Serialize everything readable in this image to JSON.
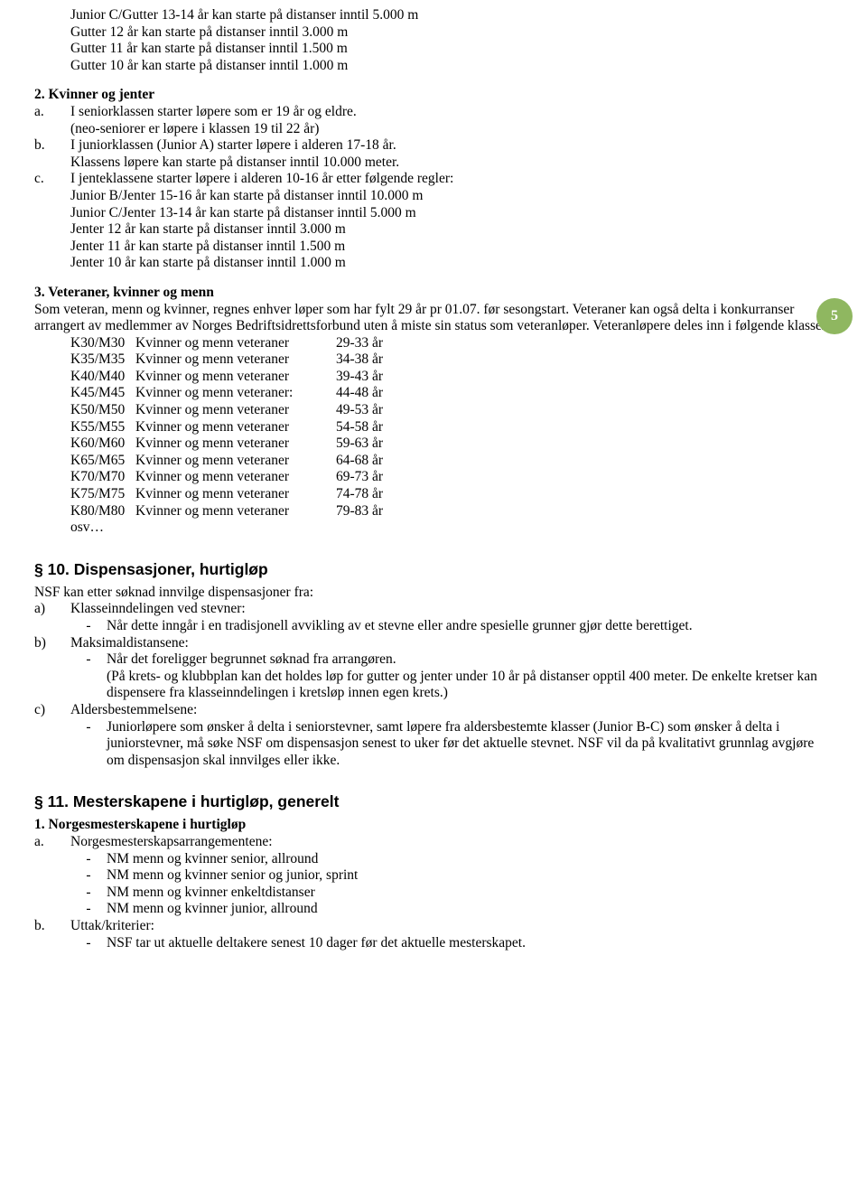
{
  "page_badge": "5",
  "top_lines": [
    "Junior C/Gutter 13-14 år kan starte på distanser inntil 5.000 m",
    "Gutter 12 år kan starte på distanser inntil 3.000 m",
    "Gutter 11 år kan starte på distanser inntil 1.500 m",
    "Gutter 10 år kan starte på distanser inntil 1.000 m"
  ],
  "s2": {
    "title": "2. Kvinner og jenter",
    "a": {
      "label": "a.",
      "lines": [
        "I seniorklassen starter løpere som er 19 år og eldre.",
        "(neo-seniorer er løpere i klassen 19 til 22 år)"
      ]
    },
    "b": {
      "label": "b.",
      "lines": [
        "I juniorklassen (Junior A) starter løpere i alderen 17-18 år.",
        "Klassens løpere kan starte på distanser inntil 10.000 meter."
      ]
    },
    "c": {
      "label": "c.",
      "lines": [
        "I jenteklassene starter løpere i alderen 10-16 år etter følgende regler:",
        "Junior B/Jenter 15-16 år kan starte på distanser inntil 10.000 m",
        "Junior C/Jenter 13-14 år kan starte på distanser inntil 5.000 m",
        "Jenter 12 år kan starte på distanser inntil 3.000 m",
        "Jenter 11 år kan starte på distanser inntil 1.500 m",
        "Jenter 10 år kan starte på distanser inntil 1.000 m"
      ]
    }
  },
  "s3": {
    "title": "3. Veteraner, kvinner og menn",
    "intro": "Som veteran, menn og kvinner, regnes enhver løper som har fylt 29 år pr 01.07. før sesongstart. Veteraner kan også delta i konkurranser arrangert av medlemmer av Norges Bedriftsidrettsforbund uten å miste sin status som veteranløper. Veteranløpere deles inn i følgende klasser:",
    "rows": [
      {
        "c1": "K30/M30",
        "c2": "Kvinner og menn veteraner",
        "c3": "29-33 år"
      },
      {
        "c1": "K35/M35",
        "c2": "Kvinner og menn veteraner",
        "c3": "34-38 år"
      },
      {
        "c1": "K40/M40",
        "c2": "Kvinner og menn veteraner",
        "c3": "39-43 år"
      },
      {
        "c1": "K45/M45",
        "c2": "Kvinner og menn veteraner:",
        "c3": "44-48 år"
      },
      {
        "c1": "K50/M50",
        "c2": "Kvinner og menn veteraner",
        "c3": "49-53 år"
      },
      {
        "c1": "K55/M55",
        "c2": "Kvinner og menn veteraner",
        "c3": "54-58 år"
      },
      {
        "c1": "K60/M60",
        "c2": "Kvinner og menn veteraner",
        "c3": "59-63 år"
      },
      {
        "c1": "K65/M65",
        "c2": "Kvinner og menn veteraner",
        "c3": "64-68 år"
      },
      {
        "c1": "K70/M70",
        "c2": "Kvinner og menn veteraner",
        "c3": "69-73 år"
      },
      {
        "c1": "K75/M75",
        "c2": "Kvinner og menn veteraner",
        "c3": "74-78 år"
      },
      {
        "c1": "K80/M80",
        "c2": "Kvinner og menn veteraner",
        "c3": "79-83 år"
      }
    ],
    "osv": "osv…"
  },
  "s10": {
    "title": "§ 10. Dispensasjoner, hurtigløp",
    "intro": "NSF kan etter søknad innvilge dispensasjoner fra:",
    "a": {
      "label": "a)",
      "head": "Klasseinndelingen ved stevner:",
      "items": [
        "Når dette inngår i en tradisjonell avvikling av et stevne eller andre spesielle grunner gjør dette berettiget."
      ]
    },
    "b": {
      "label": "b)",
      "head": "Maksimaldistansene:",
      "items": [
        "Når det foreligger begrunnet søknad fra arrangøren.\n(På krets- og klubbplan kan det holdes løp for gutter og jenter under 10 år på distanser opptil 400 meter. De enkelte kretser kan dispensere fra klasseinndelingen i kretsløp innen egen krets.)"
      ]
    },
    "c": {
      "label": "c)",
      "head": "Aldersbestemmelsene:",
      "items": [
        "Juniorløpere som ønsker å delta i seniorstevner, samt løpere fra aldersbestemte klasser (Junior B-C) som ønsker å delta i juniorstevner, må søke NSF om dispensasjon senest to uker før det aktuelle stevnet. NSF vil da på kvalitativt grunnlag avgjøre om dispensasjon skal innvilges eller ikke."
      ]
    }
  },
  "s11": {
    "title": "§ 11. Mesterskapene i hurtigløp, generelt",
    "sub1": "1. Norgesmesterskapene i hurtigløp",
    "a": {
      "label": "a.",
      "head": "Norgesmesterskapsarrangementene:",
      "items": [
        "NM menn og kvinner senior, allround",
        "NM menn og kvinner senior og junior, sprint",
        "NM menn og kvinner enkeltdistanser",
        "NM menn og kvinner junior, allround"
      ]
    },
    "b": {
      "label": "b.",
      "head": "Uttak/kriterier:",
      "items": [
        "NSF tar ut aktuelle deltakere senest 10 dager før det aktuelle mesterskapet."
      ]
    }
  }
}
